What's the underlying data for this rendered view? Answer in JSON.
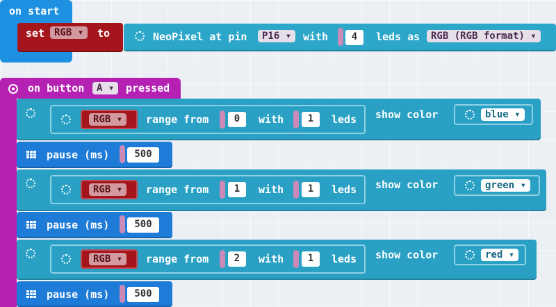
{
  "on_start": {
    "hat_label": "on start",
    "set_label": "set",
    "variable": "RGB",
    "to_label": "to",
    "neopixel_prefix": "NeoPixel at pin",
    "pin": "P16",
    "with_label": "with",
    "leds_count": "4",
    "leds_as_label": "leds as",
    "format": "RGB (RGB format)"
  },
  "on_button": {
    "prefix": "on button",
    "button": "A",
    "suffix": "pressed"
  },
  "rows": [
    {
      "variable": "RGB",
      "range_from_label": "range from",
      "start": "0",
      "with_label": "with",
      "count": "1",
      "leds_label": "leds",
      "show_color_label": "show color",
      "color": "blue"
    },
    {
      "variable": "RGB",
      "range_from_label": "range from",
      "start": "1",
      "with_label": "with",
      "count": "1",
      "leds_label": "leds",
      "show_color_label": "show color",
      "color": "green"
    },
    {
      "variable": "RGB",
      "range_from_label": "range from",
      "start": "2",
      "with_label": "with",
      "count": "1",
      "leds_label": "leds",
      "show_color_label": "show color",
      "color": "red"
    }
  ],
  "pauses": [
    {
      "label": "pause (ms)",
      "value": "500"
    },
    {
      "label": "pause (ms)",
      "value": "500"
    },
    {
      "label": "pause (ms)",
      "value": "500"
    }
  ],
  "dropdown_glyph": "▾",
  "colors": {
    "start_blue": "#1e90e2",
    "variable_red": "#a4161c",
    "neopixel_teal": "#2aa1c4",
    "button_magenta": "#b522b3",
    "pause_blue": "#1e7bd8"
  }
}
